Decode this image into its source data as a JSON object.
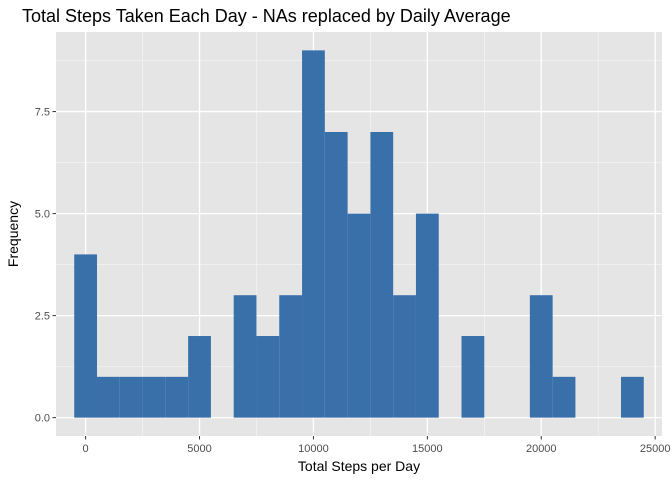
{
  "chart_data": {
    "type": "bar",
    "title": "Total Steps Taken Each Day - NAs replaced by Daily Average",
    "xlabel": "Total Steps per Day",
    "ylabel": "Frequency",
    "bin_width": 1000,
    "bin_centers": [
      0,
      1000,
      2000,
      3000,
      4000,
      5000,
      6000,
      7000,
      8000,
      9000,
      10000,
      11000,
      12000,
      13000,
      14000,
      15000,
      16000,
      17000,
      18000,
      19000,
      20000,
      21000,
      22000,
      23000,
      24000
    ],
    "values": [
      4,
      1,
      1,
      1,
      1,
      2,
      0,
      3,
      2,
      3,
      9,
      7,
      5,
      7,
      3,
      5,
      0,
      2,
      0,
      0,
      3,
      1,
      0,
      0,
      1
    ],
    "xlim": [
      -1300,
      25300
    ],
    "ylim": [
      -0.45,
      9.45
    ],
    "x_ticks": [
      0,
      5000,
      10000,
      15000,
      20000,
      25000
    ],
    "x_tick_labels": [
      "0",
      "5000",
      "10000",
      "15000",
      "20000",
      "25000"
    ],
    "y_ticks": [
      0,
      2.5,
      5,
      7.5
    ],
    "y_tick_labels": [
      "0.0",
      "2.5",
      "5.0",
      "7.5"
    ],
    "grid": true,
    "colors": {
      "bar": "#3A70AA",
      "panel_background": "#E5E5E5",
      "grid_major": "#FFFFFF",
      "tick_text": "#4D4D4D",
      "tick_mark": "#333333"
    }
  }
}
